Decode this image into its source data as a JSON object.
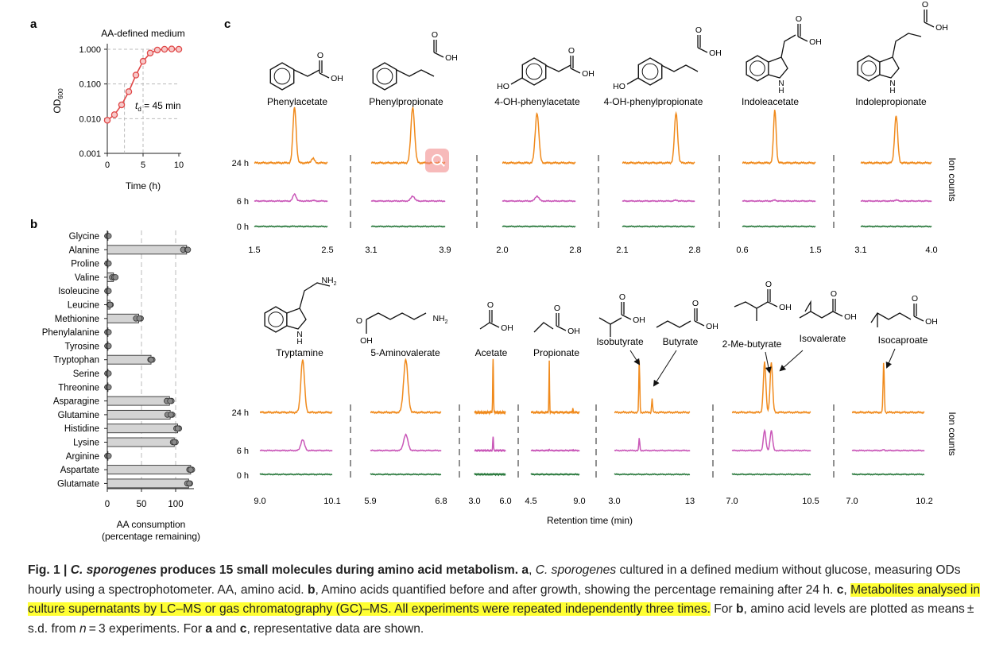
{
  "panel_labels": {
    "a": "a",
    "b": "b",
    "c": "c"
  },
  "panel_a": {
    "title": "AA-defined medium",
    "ylabel_main": "OD",
    "ylabel_sub": "600",
    "xlabel": "Time (h)",
    "yticks": [
      "1.000",
      "0.100",
      "0.010",
      "0.001"
    ],
    "xticks": [
      "0",
      "5",
      "10"
    ],
    "annot_pre": "t",
    "annot_sub": "d",
    "annot_post": " = 45 min"
  },
  "panel_b": {
    "xlabel_line1": "AA consumption",
    "xlabel_line2": "(percentage remaining)",
    "xticks": [
      "0",
      "50",
      "100"
    ]
  },
  "panel_c": {
    "time_labels": [
      "24 h",
      "6 h",
      "0 h"
    ],
    "ion_counts": "Ion counts",
    "xlabel": "Retention time (min)",
    "row1_names": [
      "Phenylacetate",
      "Phenylpropionate",
      "4-OH-phenylacetate",
      "4-OH-phenylpropionate",
      "Indoleacetate",
      "Indolepropionate"
    ],
    "row1_axes": [
      [
        "1.5",
        "2.5"
      ],
      [
        "3.1",
        "3.9"
      ],
      [
        "2.0",
        "2.8"
      ],
      [
        "2.1",
        "2.8"
      ],
      [
        "0.6",
        "1.5"
      ],
      [
        "3.1",
        "4.0"
      ]
    ],
    "row2_names": [
      "Tryptamine",
      "5-Aminovalerate",
      "Acetate",
      "Propionate",
      "Isobutyrate",
      "Butyrate",
      "2-Me-butyrate",
      "Isovalerate",
      "Isocaproate"
    ],
    "row2_axes": [
      [
        "9.0",
        "10.1"
      ],
      [
        "5.9",
        "6.8"
      ],
      [
        "3.0",
        "6.0"
      ],
      [
        "4.5",
        "9.0"
      ],
      [
        "3.0",
        "13"
      ],
      [
        "7.0",
        "10.5"
      ],
      [
        "7.0",
        "10.2"
      ]
    ],
    "chem_labels": {
      "oh": "OH",
      "o": "O",
      "ho": "HO",
      "nh2": "NH",
      "nh2_sub": "2",
      "n": "N",
      "h": "H"
    }
  },
  "colors": {
    "h24": "#f08a1c",
    "h6": "#c957b8",
    "h0": "#2b7a3e",
    "growth": "#e04848",
    "highlight": "#ffff33"
  },
  "caption": {
    "fig": "Fig. 1 |",
    "species": "C. sporogenes",
    "title_rest": " produces 15 small molecules during amino acid metabolism.",
    "a_label": "a",
    "a_species": "C. sporogenes",
    "a_text": " cultured in a defined medium without glucose, measuring ODs hourly using a spectrophotometer. AA, amino acid.",
    "b_label": "b",
    "b_text": ", Amino acids quantified before and after growth, showing the percentage remaining after 24 h.",
    "c_label": "c",
    "c_text": "Metabolites analysed in culture supernatants by LC–MS or gas chromatography (GC)–MS. All experiments were repeated independently three times.",
    "tail1": " For ",
    "tail_b": "b",
    "tail2": ", amino acid levels are plotted as means ± s.d. from ",
    "tail_n": "n",
    "tail3": " = 3 experiments. For ",
    "tail_a": "a",
    "tail4": " and ",
    "tail_c": "c",
    "tail5": ", representative data are shown."
  },
  "chart_data": [
    {
      "type": "scatter",
      "title": "AA-defined medium",
      "xlabel": "Time (h)",
      "ylabel": "OD600",
      "yscale": "log",
      "ylim": [
        0.001,
        1.0
      ],
      "xlim": [
        0,
        10
      ],
      "grid": false,
      "x": [
        0,
        1,
        2,
        3,
        4,
        5,
        6,
        7,
        8,
        9,
        10
      ],
      "y": [
        0.009,
        0.013,
        0.025,
        0.06,
        0.18,
        0.45,
        0.78,
        0.95,
        1.0,
        1.02,
        1.0
      ],
      "annotations": [
        "td = 45 min"
      ]
    },
    {
      "type": "bar",
      "orientation": "horizontal",
      "xlabel": "AA consumption (percentage remaining)",
      "xlim": [
        0,
        120
      ],
      "categories": [
        "Glycine",
        "Alanine",
        "Proline",
        "Valine",
        "Isoleucine",
        "Leucine",
        "Methionine",
        "Phenylalanine",
        "Tyrosine",
        "Tryptophan",
        "Serine",
        "Threonine",
        "Asparagine",
        "Glutamine",
        "Histidine",
        "Lysine",
        "Arginine",
        "Aspartate",
        "Glutamate"
      ],
      "values": [
        1,
        116,
        1,
        9,
        1,
        4,
        46,
        1,
        1,
        64,
        1,
        1,
        91,
        92,
        103,
        98,
        1,
        122,
        119
      ],
      "points": [
        [
          1,
          0,
          2
        ],
        [
          111,
          117,
          118
        ],
        [
          1,
          0,
          2
        ],
        [
          7,
          10,
          12
        ],
        [
          1,
          0,
          2
        ],
        [
          3,
          5,
          4
        ],
        [
          42,
          49,
          47
        ],
        [
          1,
          0,
          2
        ],
        [
          1,
          0,
          2
        ],
        [
          63,
          66,
          64
        ],
        [
          1,
          0,
          2
        ],
        [
          1,
          0,
          2
        ],
        [
          87,
          94,
          92
        ],
        [
          88,
          95,
          93
        ],
        [
          101,
          105,
          103
        ],
        [
          96,
          100,
          98
        ],
        [
          1,
          0,
          2
        ],
        [
          120,
          124,
          122
        ],
        [
          117,
          121,
          120
        ]
      ]
    },
    {
      "type": "line",
      "panel": "c, row 1",
      "ylabel": "Ion counts",
      "xlabel": "Retention time (min)",
      "series_times": [
        "24 h",
        "6 h",
        "0 h"
      ],
      "panels": [
        {
          "name": "Phenylacetate",
          "xlim": [
            1.5,
            2.5
          ],
          "peaks": [
            {
              "rt": 2.05,
              "h24": 1.0,
              "h6": 0.35,
              "h0": 0.02
            },
            {
              "rt": 2.3,
              "h24": 0.08,
              "h6": 0.03,
              "h0": 0.0
            }
          ]
        },
        {
          "name": "Phenylpropionate",
          "xlim": [
            3.1,
            3.9
          ],
          "peaks": [
            {
              "rt": 3.55,
              "h24": 1.0,
              "h6": 0.25,
              "h0": 0.0
            }
          ]
        },
        {
          "name": "4-OH-phenylacetate",
          "xlim": [
            2.0,
            2.8
          ],
          "peaks": [
            {
              "rt": 2.38,
              "h24": 0.9,
              "h6": 0.25,
              "h0": 0.02
            }
          ]
        },
        {
          "name": "4-OH-phenylpropionate",
          "xlim": [
            2.1,
            2.8
          ],
          "peaks": [
            {
              "rt": 2.62,
              "h24": 0.9,
              "h6": 0.04,
              "h0": 0.0
            }
          ]
        },
        {
          "name": "Indoleacetate",
          "xlim": [
            0.6,
            1.5
          ],
          "peaks": [
            {
              "rt": 1.0,
              "h24": 0.95,
              "h6": 0.05,
              "h0": 0.0
            }
          ]
        },
        {
          "name": "Indolepropionate",
          "xlim": [
            3.1,
            4.0
          ],
          "peaks": [
            {
              "rt": 3.55,
              "h24": 0.85,
              "h6": 0.05,
              "h0": 0.0
            }
          ]
        }
      ]
    },
    {
      "type": "line",
      "panel": "c, row 2",
      "ylabel": "Ion counts",
      "xlabel": "Retention time (min)",
      "series_times": [
        "24 h",
        "6 h",
        "0 h"
      ],
      "panels": [
        {
          "name": "Tryptamine",
          "xlim": [
            9.0,
            10.1
          ],
          "peaks": [
            {
              "rt": 9.65,
              "h24": 0.95,
              "h6": 0.55,
              "h0": 0.0
            }
          ]
        },
        {
          "name": "5-Aminovalerate",
          "xlim": [
            5.9,
            6.8
          ],
          "peaks": [
            {
              "rt": 6.35,
              "h24": 0.95,
              "h6": 0.8,
              "h0": 0.0
            }
          ]
        },
        {
          "name": "Acetate",
          "xlim": [
            3.0,
            6.0
          ],
          "peaks": [
            {
              "rt": 4.8,
              "h24": 0.95,
              "h6": 0.7,
              "h0": 0.05
            }
          ]
        },
        {
          "name": "Propionate",
          "xlim": [
            4.5,
            9.0
          ],
          "peaks": [
            {
              "rt": 6.2,
              "h24": 0.95,
              "h6": 0.08,
              "h0": 0.0
            },
            {
              "rt": 8.4,
              "h24": 0.08,
              "h6": 0.05,
              "h0": 0.03
            }
          ]
        },
        {
          "name": "Isobutyrate / Butyrate",
          "xlim": [
            3.0,
            13.0
          ],
          "peaks": [
            {
              "rt": 6.3,
              "name": "Isobutyrate",
              "h24": 0.95,
              "h6": 0.65,
              "h0": 0.0
            },
            {
              "rt": 8.0,
              "name": "Butyrate",
              "h24": 0.25,
              "h6": 0.0,
              "h0": 0.0
            }
          ]
        },
        {
          "name": "2-Me-butyrate / Isovalerate",
          "xlim": [
            7.0,
            10.5
          ],
          "peaks": [
            {
              "rt": 8.45,
              "name": "2-Me-butyrate",
              "h24": 0.9,
              "h6": 1.0,
              "h0": 0.0
            },
            {
              "rt": 8.75,
              "name": "Isovalerate",
              "h24": 0.9,
              "h6": 1.0,
              "h0": 0.0
            }
          ]
        },
        {
          "name": "Isocaproate",
          "xlim": [
            7.0,
            10.2
          ],
          "peaks": [
            {
              "rt": 8.4,
              "h24": 0.9,
              "h6": 0.05,
              "h0": 0.0
            }
          ]
        }
      ]
    }
  ]
}
